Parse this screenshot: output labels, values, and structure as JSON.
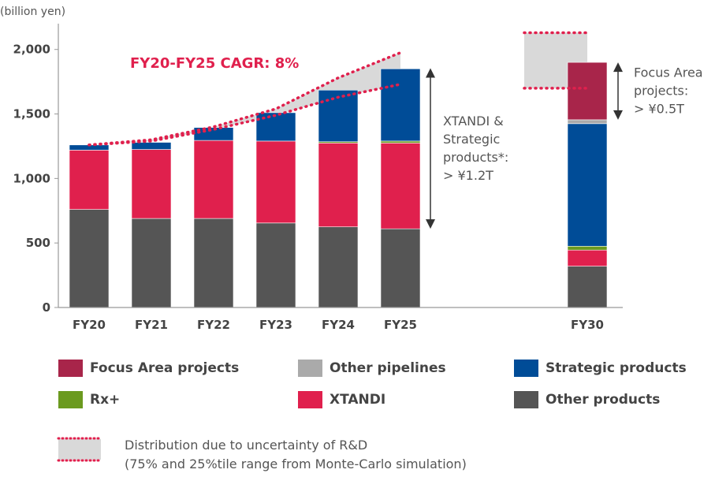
{
  "chart_data": {
    "type": "bar",
    "stacked": true,
    "unit_label": "(billion yen)",
    "categories": [
      "FY20",
      "FY21",
      "FY22",
      "FY23",
      "FY24",
      "FY25",
      "FY30"
    ],
    "ylim": [
      0,
      2200
    ],
    "yticks": [
      0,
      500,
      1000,
      1500,
      2000
    ],
    "ytick_labels": [
      "0",
      "500",
      "1,000",
      "1,500",
      "2,000"
    ],
    "series": [
      {
        "name": "Other products",
        "color": "#555555",
        "values": [
          760,
          690,
          690,
          655,
          625,
          610,
          320
        ]
      },
      {
        "name": "XTANDI",
        "color": "#E0204D",
        "values": [
          460,
          535,
          605,
          635,
          650,
          665,
          125
        ]
      },
      {
        "name": "Rx+",
        "color": "#6B9A1F",
        "values": [
          0,
          0,
          0,
          0,
          10,
          15,
          30
        ]
      },
      {
        "name": "Strategic products",
        "color": "#004C97",
        "values": [
          40,
          55,
          100,
          220,
          400,
          560,
          950
        ]
      },
      {
        "name": "Other pipelines",
        "color": "#AAAAAA",
        "values": [
          0,
          0,
          0,
          0,
          0,
          0,
          30
        ]
      },
      {
        "name": "Focus Area projects",
        "color": "#A8254A",
        "values": [
          0,
          0,
          0,
          0,
          0,
          0,
          445
        ]
      }
    ],
    "uncertainty_band": {
      "x": [
        "FY20",
        "FY21",
        "FY22",
        "FY23",
        "FY24",
        "FY25"
      ],
      "upper": [
        1260,
        1300,
        1400,
        1540,
        1780,
        1975
      ],
      "lower": [
        1260,
        1290,
        1380,
        1490,
        1630,
        1730
      ]
    },
    "fy30_band": {
      "upper": 2130,
      "lower": 1700
    },
    "cagr_label": "FY20-FY25 CAGR: 8%",
    "annotations": [
      {
        "lines": [
          "XTANDI &",
          "Strategic",
          "products*:",
          "> ¥1.2T"
        ],
        "from": 610,
        "to": 1855
      },
      {
        "lines": [
          "Focus Area",
          "projects:",
          "> ¥0.5T"
        ],
        "from": 1455,
        "to": 1900
      }
    ],
    "legend": [
      {
        "name": "Focus Area projects",
        "color": "#A8254A"
      },
      {
        "name": "Other pipelines",
        "color": "#AAAAAA"
      },
      {
        "name": "Strategic products",
        "color": "#004C97"
      },
      {
        "name": "Rx+",
        "color": "#6B9A1F"
      },
      {
        "name": "XTANDI",
        "color": "#E0204D"
      },
      {
        "name": "Other products",
        "color": "#555555"
      }
    ],
    "distribution_note": {
      "line1": "Distribution due to uncertainty of R&D",
      "line2": "(75% and 25%tile range from Monte-Carlo simulation)",
      "band_color": "#D9D9D9",
      "dot_color": "#E0204D"
    }
  }
}
